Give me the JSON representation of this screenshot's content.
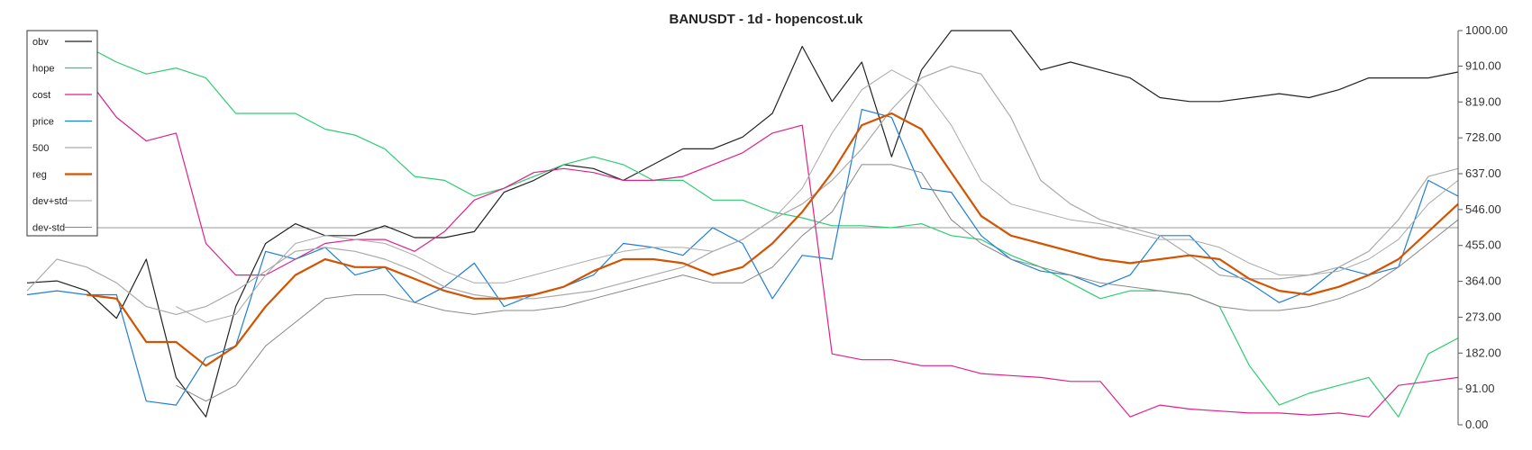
{
  "chart_data": {
    "type": "line",
    "title": "BANUSDT - 1d - hopencost.uk",
    "xlabel": "",
    "ylabel": "",
    "ylim": [
      0,
      1000
    ],
    "y_ticks": [
      "0.00",
      "91.00",
      "182.00",
      "273.00",
      "364.00",
      "455.00",
      "546.00",
      "637.00",
      "728.00",
      "819.00",
      "910.00",
      "1000.00"
    ],
    "legend_position": "top-left",
    "reference_line": 500,
    "x": [
      0,
      5,
      10,
      15,
      20,
      25,
      30,
      35,
      40,
      45,
      50,
      55,
      60,
      65,
      70,
      75,
      80,
      85,
      90,
      95,
      100,
      105,
      110,
      115,
      120,
      125,
      130,
      135,
      140,
      145,
      150,
      155,
      160,
      165,
      170,
      175,
      180,
      185,
      190,
      195,
      200,
      205,
      210,
      215,
      220,
      225,
      230,
      235,
      240
    ],
    "series": [
      {
        "name": "obv",
        "color": "#222222",
        "width": 1.2,
        "values": [
          360,
          365,
          340,
          270,
          420,
          120,
          20,
          300,
          460,
          510,
          480,
          480,
          505,
          475,
          475,
          490,
          590,
          620,
          660,
          650,
          620,
          660,
          700,
          700,
          730,
          790,
          960,
          820,
          920,
          680,
          900,
          1000,
          1000,
          1000,
          900,
          920,
          900,
          880,
          830,
          820,
          820,
          830,
          840,
          830,
          850,
          880,
          880,
          880,
          895
        ]
      },
      {
        "name": "hope",
        "color": "#2ecc71",
        "width": 1.2,
        "values": [
          null,
          990,
          960,
          920,
          890,
          905,
          880,
          790,
          790,
          790,
          750,
          735,
          700,
          630,
          620,
          580,
          600,
          630,
          660,
          680,
          660,
          620,
          620,
          570,
          570,
          540,
          525,
          505,
          505,
          500,
          510,
          480,
          470,
          430,
          400,
          360,
          320,
          340,
          340,
          330,
          300,
          150,
          50,
          80,
          100,
          120,
          20,
          180,
          220
        ]
      },
      {
        "name": "cost",
        "color": "#e0218a",
        "width": 1.2,
        "values": [
          null,
          930,
          880,
          780,
          720,
          740,
          460,
          380,
          380,
          420,
          460,
          470,
          470,
          440,
          490,
          570,
          600,
          640,
          650,
          640,
          620,
          620,
          630,
          660,
          690,
          740,
          760,
          180,
          165,
          165,
          150,
          150,
          130,
          125,
          120,
          110,
          110,
          20,
          50,
          40,
          35,
          30,
          30,
          25,
          30,
          20,
          100,
          110,
          120
        ]
      },
      {
        "name": "price",
        "color": "#1e7fd8",
        "width": 1.2,
        "values": [
          330,
          340,
          330,
          330,
          60,
          50,
          170,
          200,
          440,
          420,
          450,
          380,
          400,
          310,
          350,
          410,
          300,
          330,
          350,
          380,
          460,
          450,
          430,
          500,
          460,
          320,
          430,
          420,
          800,
          780,
          600,
          590,
          480,
          420,
          390,
          380,
          350,
          380,
          480,
          480,
          400,
          360,
          310,
          340,
          400,
          380,
          400,
          620,
          580
        ]
      },
      {
        "name": "500",
        "color": "#aaaaaa",
        "width": 1.2,
        "values": [
          340,
          420,
          400,
          360,
          300,
          280,
          300,
          340,
          390,
          440,
          450,
          440,
          420,
          390,
          350,
          330,
          320,
          320,
          330,
          340,
          360,
          380,
          400,
          440,
          470,
          520,
          560,
          620,
          700,
          800,
          880,
          910,
          890,
          780,
          620,
          560,
          520,
          500,
          480,
          430,
          380,
          370,
          370,
          380,
          400,
          440,
          520,
          630,
          650
        ]
      },
      {
        "name": "reg",
        "color": "#d35400",
        "width": 2.2,
        "values": [
          null,
          null,
          330,
          320,
          210,
          210,
          150,
          200,
          300,
          380,
          420,
          400,
          400,
          370,
          340,
          320,
          320,
          330,
          350,
          390,
          420,
          420,
          410,
          380,
          400,
          460,
          540,
          640,
          760,
          790,
          750,
          640,
          530,
          480,
          460,
          440,
          420,
          410,
          420,
          430,
          420,
          370,
          340,
          330,
          350,
          380,
          420,
          490,
          560
        ]
      },
      {
        "name": "dev+std",
        "color": "#aaaaaa",
        "width": 1.0,
        "values": [
          null,
          null,
          null,
          null,
          null,
          300,
          260,
          280,
          380,
          460,
          480,
          470,
          460,
          430,
          390,
          360,
          360,
          380,
          400,
          420,
          440,
          450,
          450,
          440,
          470,
          520,
          600,
          740,
          850,
          900,
          860,
          760,
          620,
          560,
          540,
          520,
          510,
          490,
          470,
          470,
          450,
          410,
          380,
          380,
          390,
          420,
          470,
          560,
          620
        ]
      },
      {
        "name": "dev-std",
        "color": "#888888",
        "width": 1.0,
        "values": [
          null,
          null,
          null,
          null,
          null,
          100,
          60,
          100,
          200,
          260,
          320,
          330,
          330,
          310,
          290,
          280,
          290,
          290,
          300,
          320,
          340,
          360,
          380,
          360,
          360,
          400,
          480,
          540,
          660,
          660,
          640,
          520,
          460,
          420,
          400,
          380,
          360,
          350,
          340,
          330,
          300,
          290,
          290,
          300,
          320,
          350,
          400,
          460,
          520
        ]
      }
    ]
  }
}
